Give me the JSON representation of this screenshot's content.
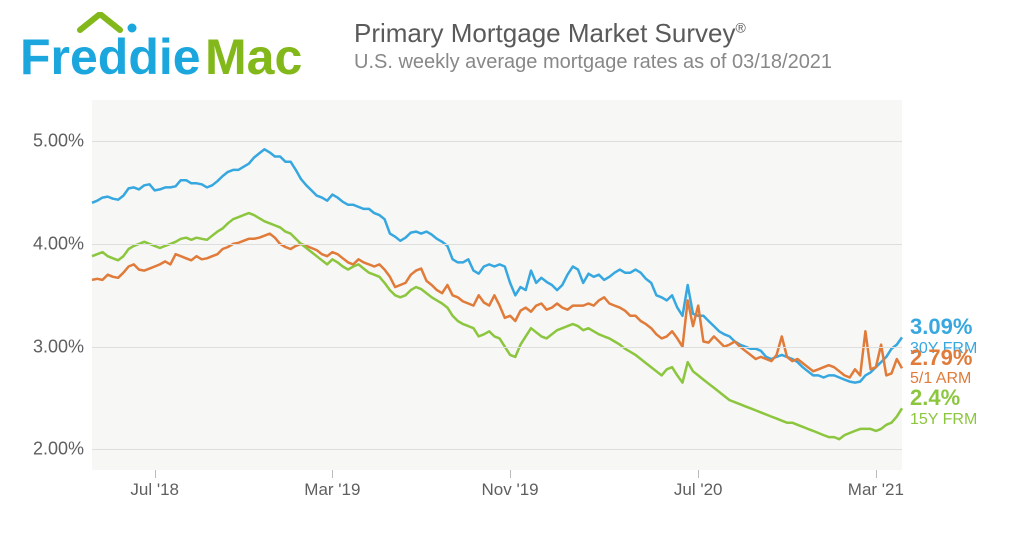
{
  "logo": {
    "text_freddie": "Freddie",
    "text_mac": "Mac",
    "color_freddie": "#1ba6dd",
    "color_mac": "#83b81a",
    "roof_color": "#83b81a"
  },
  "header": {
    "title": "Primary Mortgage Market Survey",
    "title_suffix": "®",
    "subtitle": "U.S. weekly average mortgage rates as of 03/18/2021",
    "title_color": "#5a5a5a",
    "subtitle_color": "#888888",
    "title_fontsize": 26,
    "subtitle_fontsize": 20
  },
  "chart": {
    "type": "line",
    "background_color": "#f7f7f5",
    "grid_color": "#dedede",
    "axis_label_color": "#5f5f5f",
    "axis_fontsize": 18,
    "ylim": [
      1.8,
      5.4
    ],
    "yticks": [
      2.0,
      3.0,
      4.0,
      5.0
    ],
    "ytick_labels": [
      "2.00%",
      "3.00%",
      "4.00%",
      "5.00%"
    ],
    "x_count": 156,
    "xticks": [
      12,
      46,
      80,
      116,
      150
    ],
    "xtick_labels": [
      "Jul '18",
      "Mar '19",
      "Nov '19",
      "Jul '20",
      "Mar '21"
    ],
    "line_width": 2.5,
    "series": [
      {
        "id": "30y",
        "label": "30Y FRM",
        "value_label": "3.09%",
        "color": "#37a7e0",
        "data": [
          4.4,
          4.42,
          4.45,
          4.46,
          4.44,
          4.43,
          4.47,
          4.54,
          4.55,
          4.53,
          4.57,
          4.58,
          4.52,
          4.53,
          4.55,
          4.55,
          4.56,
          4.62,
          4.62,
          4.59,
          4.59,
          4.58,
          4.55,
          4.57,
          4.61,
          4.66,
          4.7,
          4.72,
          4.72,
          4.75,
          4.78,
          4.84,
          4.88,
          4.92,
          4.89,
          4.85,
          4.85,
          4.8,
          4.8,
          4.72,
          4.63,
          4.57,
          4.52,
          4.47,
          4.45,
          4.42,
          4.48,
          4.45,
          4.41,
          4.38,
          4.38,
          4.36,
          4.34,
          4.34,
          4.3,
          4.28,
          4.24,
          4.1,
          4.07,
          4.03,
          4.06,
          4.11,
          4.12,
          4.1,
          4.12,
          4.09,
          4.05,
          4.02,
          3.98,
          3.85,
          3.82,
          3.82,
          3.85,
          3.74,
          3.71,
          3.78,
          3.8,
          3.78,
          3.8,
          3.78,
          3.62,
          3.5,
          3.58,
          3.55,
          3.74,
          3.62,
          3.67,
          3.63,
          3.6,
          3.55,
          3.6,
          3.7,
          3.78,
          3.75,
          3.62,
          3.71,
          3.68,
          3.7,
          3.65,
          3.68,
          3.72,
          3.75,
          3.72,
          3.72,
          3.75,
          3.72,
          3.66,
          3.62,
          3.5,
          3.48,
          3.45,
          3.5,
          3.38,
          3.3,
          3.6,
          3.32,
          3.3,
          3.3,
          3.25,
          3.2,
          3.15,
          3.12,
          3.1,
          3.05,
          3.02,
          3.0,
          2.98,
          2.98,
          2.96,
          2.9,
          2.88,
          2.9,
          2.92,
          2.9,
          2.88,
          2.85,
          2.8,
          2.76,
          2.72,
          2.72,
          2.7,
          2.72,
          2.72,
          2.7,
          2.68,
          2.66,
          2.65,
          2.66,
          2.72,
          2.75,
          2.8,
          2.85,
          2.9,
          2.98,
          3.02,
          3.09
        ]
      },
      {
        "id": "51arm",
        "label": "5/1 ARM",
        "value_label": "2.79%",
        "color": "#e07b3a",
        "data": [
          3.65,
          3.66,
          3.65,
          3.7,
          3.68,
          3.67,
          3.72,
          3.78,
          3.8,
          3.75,
          3.74,
          3.76,
          3.78,
          3.8,
          3.83,
          3.8,
          3.9,
          3.88,
          3.86,
          3.84,
          3.88,
          3.85,
          3.86,
          3.88,
          3.9,
          3.95,
          3.97,
          4.0,
          4.01,
          4.03,
          4.05,
          4.05,
          4.06,
          4.08,
          4.1,
          4.06,
          4.0,
          3.97,
          3.95,
          3.98,
          4.0,
          3.98,
          3.96,
          3.94,
          3.9,
          3.88,
          3.92,
          3.9,
          3.86,
          3.82,
          3.8,
          3.85,
          3.82,
          3.8,
          3.78,
          3.8,
          3.75,
          3.68,
          3.58,
          3.6,
          3.62,
          3.7,
          3.74,
          3.76,
          3.64,
          3.6,
          3.55,
          3.52,
          3.6,
          3.5,
          3.48,
          3.44,
          3.42,
          3.4,
          3.5,
          3.43,
          3.4,
          3.5,
          3.4,
          3.28,
          3.3,
          3.25,
          3.35,
          3.38,
          3.34,
          3.4,
          3.42,
          3.36,
          3.38,
          3.42,
          3.38,
          3.36,
          3.4,
          3.4,
          3.4,
          3.42,
          3.4,
          3.45,
          3.48,
          3.42,
          3.4,
          3.38,
          3.35,
          3.3,
          3.3,
          3.25,
          3.22,
          3.18,
          3.12,
          3.08,
          3.1,
          3.15,
          3.08,
          3.0,
          3.45,
          3.2,
          3.4,
          3.05,
          3.04,
          3.1,
          3.05,
          3.0,
          3.02,
          3.05,
          3.0,
          2.96,
          2.92,
          2.88,
          2.9,
          2.88,
          2.86,
          2.92,
          3.1,
          2.9,
          2.86,
          2.88,
          2.84,
          2.8,
          2.76,
          2.78,
          2.8,
          2.82,
          2.8,
          2.76,
          2.72,
          2.7,
          2.78,
          2.72,
          3.15,
          2.78,
          2.8,
          3.02,
          2.72,
          2.74,
          2.88,
          2.79
        ]
      },
      {
        "id": "15y",
        "label": "15Y FRM",
        "value_label": "2.4%",
        "color": "#8cc63f",
        "data": [
          3.88,
          3.9,
          3.92,
          3.88,
          3.86,
          3.84,
          3.88,
          3.95,
          3.98,
          4.0,
          4.02,
          4.0,
          3.98,
          3.96,
          3.98,
          4.0,
          4.02,
          4.05,
          4.06,
          4.04,
          4.06,
          4.05,
          4.04,
          4.08,
          4.12,
          4.15,
          4.2,
          4.24,
          4.26,
          4.28,
          4.3,
          4.28,
          4.25,
          4.22,
          4.2,
          4.18,
          4.16,
          4.12,
          4.1,
          4.05,
          4.0,
          3.96,
          3.92,
          3.88,
          3.84,
          3.8,
          3.85,
          3.82,
          3.78,
          3.75,
          3.78,
          3.8,
          3.76,
          3.72,
          3.7,
          3.68,
          3.62,
          3.55,
          3.5,
          3.48,
          3.5,
          3.55,
          3.58,
          3.56,
          3.52,
          3.48,
          3.45,
          3.42,
          3.38,
          3.3,
          3.25,
          3.22,
          3.2,
          3.18,
          3.1,
          3.12,
          3.15,
          3.1,
          3.08,
          3.0,
          2.92,
          2.9,
          3.02,
          3.1,
          3.18,
          3.14,
          3.1,
          3.08,
          3.12,
          3.16,
          3.18,
          3.2,
          3.22,
          3.2,
          3.16,
          3.18,
          3.15,
          3.12,
          3.1,
          3.08,
          3.05,
          3.02,
          2.98,
          2.95,
          2.92,
          2.88,
          2.84,
          2.8,
          2.76,
          2.72,
          2.78,
          2.8,
          2.72,
          2.65,
          2.85,
          2.76,
          2.72,
          2.68,
          2.64,
          2.6,
          2.56,
          2.52,
          2.48,
          2.46,
          2.44,
          2.42,
          2.4,
          2.38,
          2.36,
          2.34,
          2.32,
          2.3,
          2.28,
          2.26,
          2.26,
          2.24,
          2.22,
          2.2,
          2.18,
          2.16,
          2.14,
          2.12,
          2.12,
          2.1,
          2.14,
          2.16,
          2.18,
          2.2,
          2.2,
          2.2,
          2.18,
          2.2,
          2.24,
          2.26,
          2.32,
          2.4
        ]
      }
    ]
  }
}
